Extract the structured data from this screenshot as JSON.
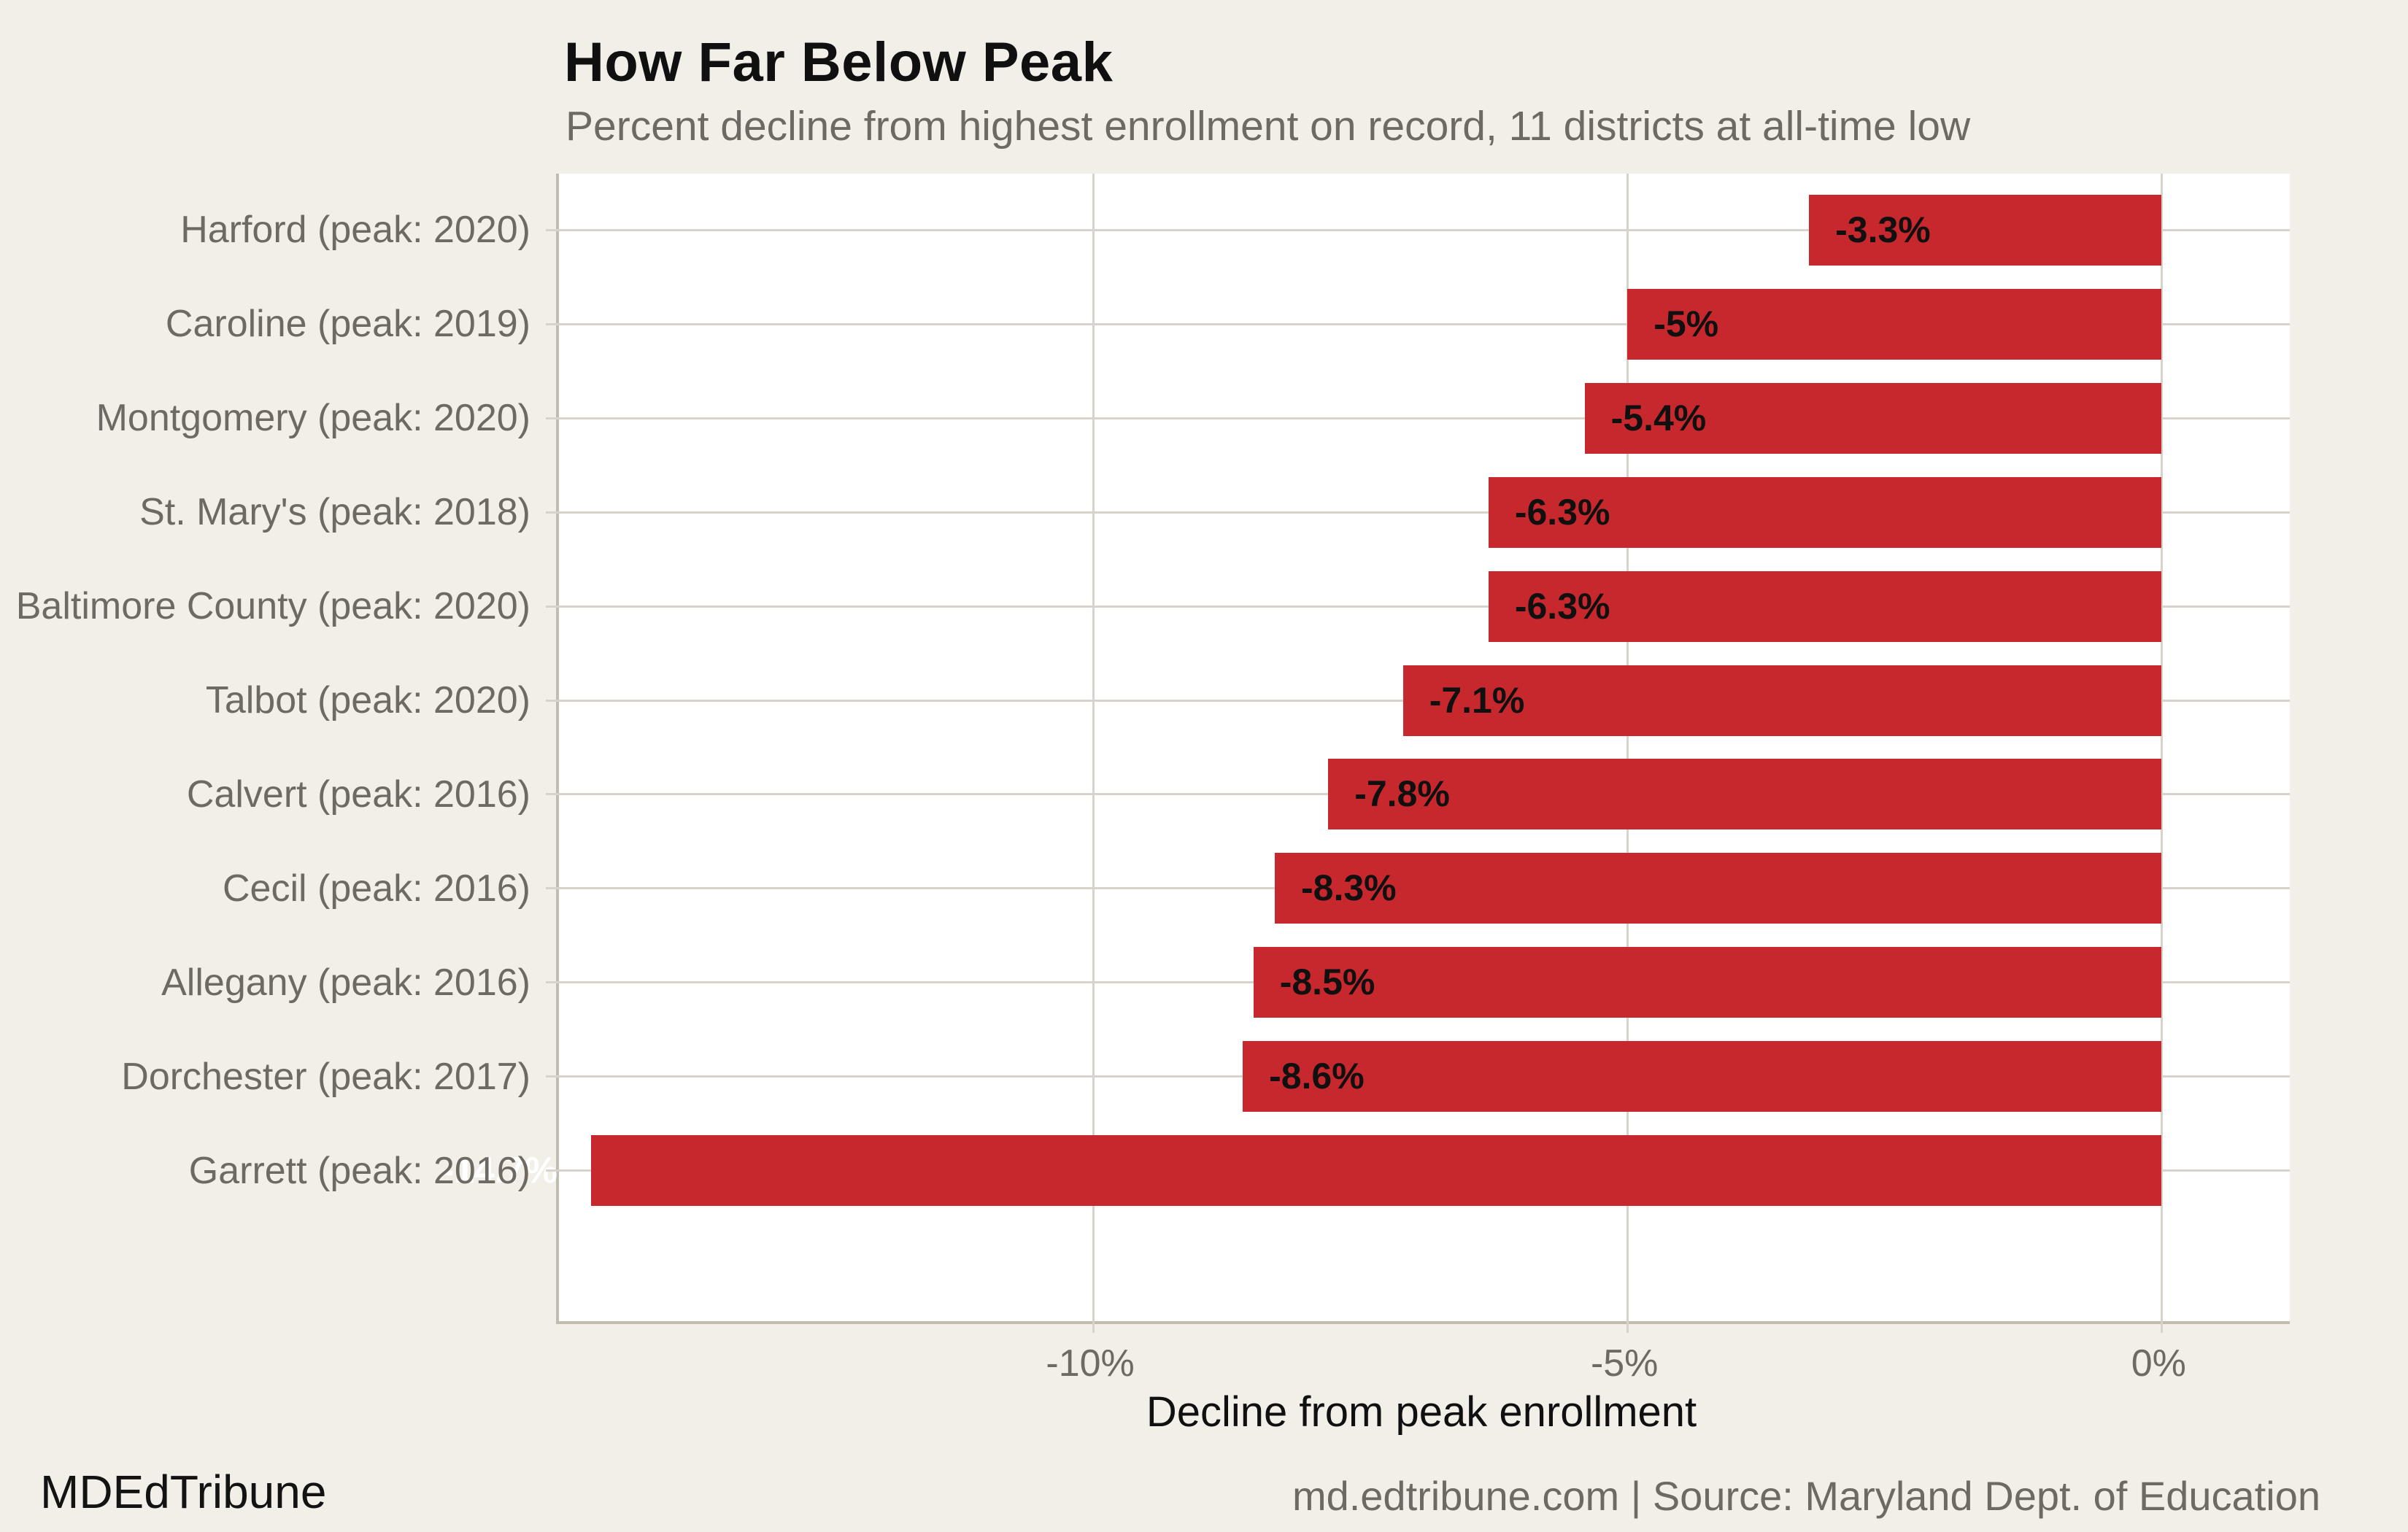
{
  "header": {
    "title": "How Far Below Peak",
    "subtitle": "Percent decline from highest enrollment on record, 11 districts at all-time low"
  },
  "footer": {
    "brand": "MDEdTribune",
    "attribution": "md.edtribune.com | Source: Maryland Dept. of Education"
  },
  "colors": {
    "background": "#f2efe9",
    "panel": "#ffffff",
    "bar": "#c7282d",
    "gridline": "#d8d3ca",
    "axis_line": "#c1bbb0",
    "muted_text": "#6e6a63",
    "dark_text": "#101010",
    "bar_label_light": "#ffffff"
  },
  "chart_data": {
    "type": "bar",
    "orientation": "horizontal",
    "title": "How Far Below Peak",
    "subtitle": "Percent decline from highest enrollment on record, 11 districts at all-time low",
    "xlabel": "Decline from peak enrollment",
    "ylabel": "",
    "xlim": [
      -15,
      1.2
    ],
    "grid": true,
    "legend": false,
    "x_ticks": [
      {
        "value": -10,
        "label": "-10%"
      },
      {
        "value": -5,
        "label": "-5%"
      },
      {
        "value": 0,
        "label": "0%"
      }
    ],
    "bars": [
      {
        "category": "Harford (peak: 2020)",
        "value": -3.3,
        "label": "-3.3%",
        "label_placement": "inside",
        "label_color": "dark"
      },
      {
        "category": "Caroline (peak: 2019)",
        "value": -5,
        "label": "-5%",
        "label_placement": "inside",
        "label_color": "dark"
      },
      {
        "category": "Montgomery (peak: 2020)",
        "value": -5.4,
        "label": "-5.4%",
        "label_placement": "inside",
        "label_color": "dark"
      },
      {
        "category": "St. Mary's (peak: 2018)",
        "value": -6.3,
        "label": "-6.3%",
        "label_placement": "inside",
        "label_color": "dark"
      },
      {
        "category": "Baltimore County (peak: 2020)",
        "value": -6.3,
        "label": "-6.3%",
        "label_placement": "inside",
        "label_color": "dark"
      },
      {
        "category": "Talbot (peak: 2020)",
        "value": -7.1,
        "label": "-7.1%",
        "label_placement": "inside",
        "label_color": "dark"
      },
      {
        "category": "Calvert (peak: 2016)",
        "value": -7.8,
        "label": "-7.8%",
        "label_placement": "inside",
        "label_color": "dark"
      },
      {
        "category": "Cecil (peak: 2016)",
        "value": -8.3,
        "label": "-8.3%",
        "label_placement": "inside",
        "label_color": "dark"
      },
      {
        "category": "Allegany (peak: 2016)",
        "value": -8.5,
        "label": "-8.5%",
        "label_placement": "inside",
        "label_color": "dark"
      },
      {
        "category": "Dorchester (peak: 2017)",
        "value": -8.6,
        "label": "-8.6%",
        "label_placement": "inside",
        "label_color": "dark"
      },
      {
        "category": "Garrett (peak: 2016)",
        "value": -14.7,
        "label": "-14.7%",
        "label_placement": "outside-left",
        "label_color": "light"
      }
    ]
  }
}
